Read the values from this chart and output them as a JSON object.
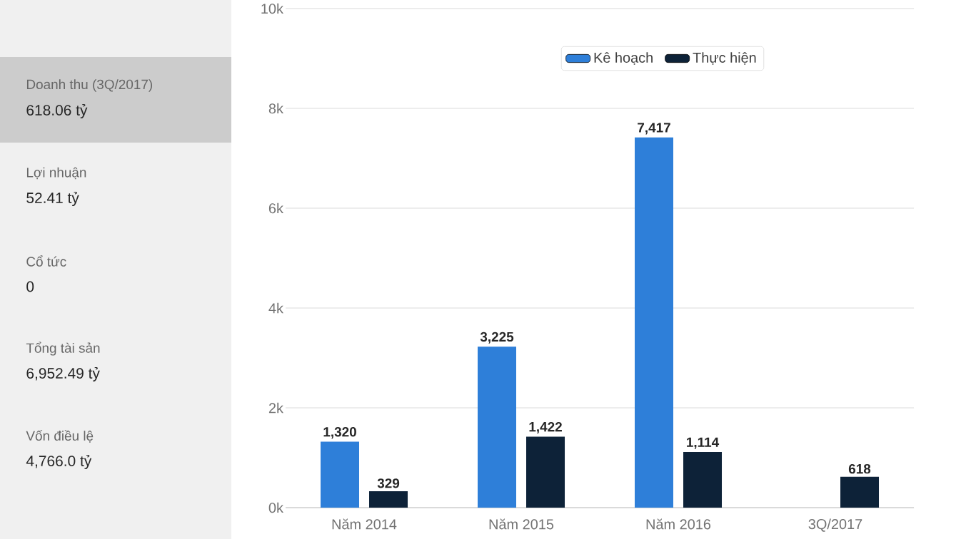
{
  "chart_data": [
    {
      "type": "other",
      "annotations": [
        "Doanh thu (3Q/2017)",
        "618.06 tỷ",
        "Lợi nhuận",
        "52.41 tỷ",
        "Cổ tức",
        "0",
        "Tổng tài sản",
        "6,952.49 tỷ",
        "Vốn điều lệ",
        "4,766.0 tỷ"
      ]
    },
    {
      "type": "bar",
      "categories": [
        "Năm 2014",
        "Năm 2015",
        "Năm 2016",
        "3Q/2017"
      ],
      "series": [
        {
          "name": "Kê hoạch",
          "color": "#2e7fd9",
          "values": [
            1320,
            3225,
            7417,
            null
          ],
          "value_labels": [
            "1,320",
            "3,225",
            "7,417",
            null
          ]
        },
        {
          "name": "Thực hiện",
          "color": "#0d2238",
          "values": [
            329,
            1422,
            1114,
            618
          ],
          "value_labels": [
            "329",
            "1,422",
            "1,114",
            "618"
          ]
        }
      ],
      "ylim": [
        0,
        10000
      ],
      "yticks": [
        {
          "value": 0,
          "label": "0k"
        },
        {
          "value": 2000,
          "label": "2k"
        },
        {
          "value": 4000,
          "label": "4k"
        },
        {
          "value": 6000,
          "label": "6k"
        },
        {
          "value": 8000,
          "label": "8k"
        },
        {
          "value": 10000,
          "label": "10k"
        }
      ],
      "grid": "y",
      "legend": "top"
    }
  ]
}
